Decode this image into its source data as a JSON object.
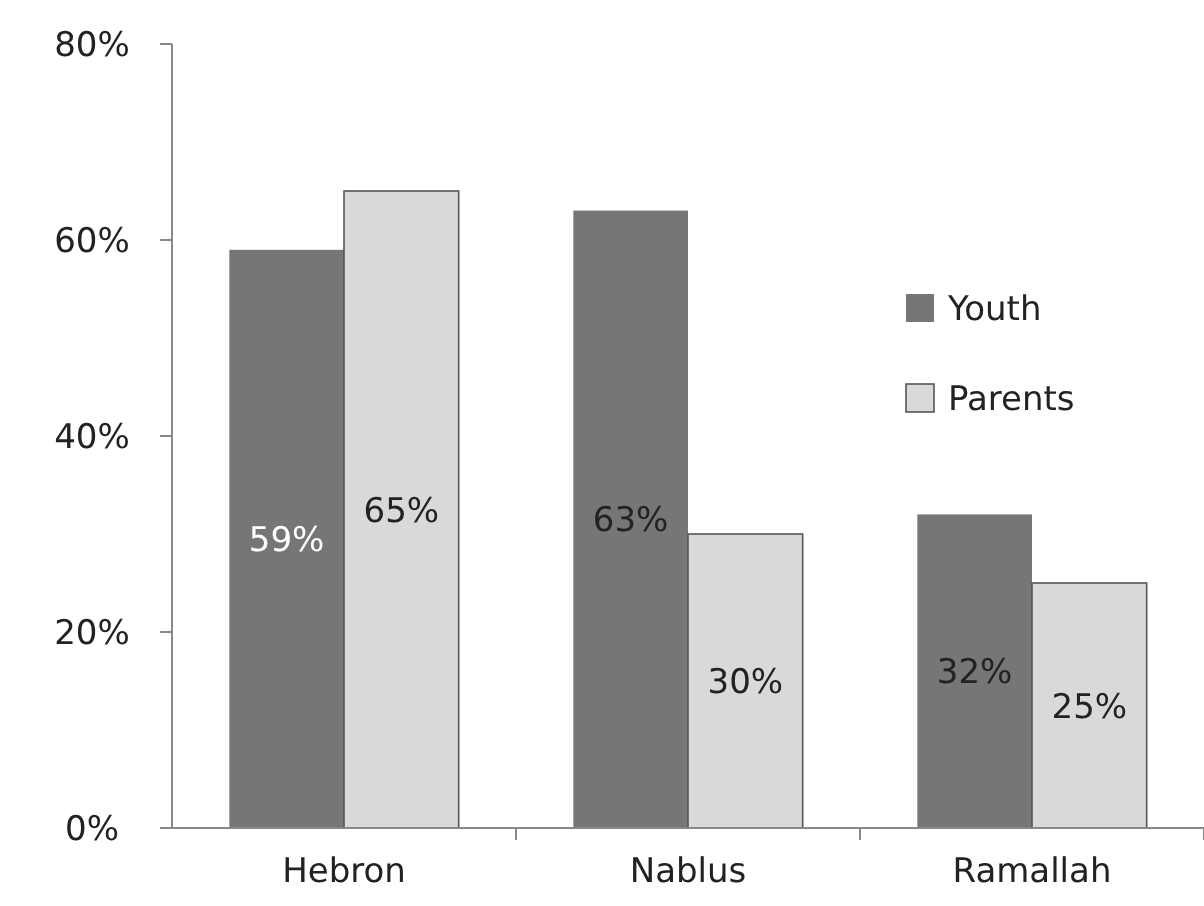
{
  "chart_data": {
    "type": "bar",
    "categories": [
      "Hebron",
      "Nablus",
      "Ramallah"
    ],
    "series": [
      {
        "name": "Youth",
        "color": "#767676",
        "values": [
          59,
          63,
          32
        ],
        "value_labels": [
          "59%",
          "63%",
          "32%"
        ]
      },
      {
        "name": "Parents",
        "color": "#d9d9d9",
        "values": [
          65,
          30,
          25
        ],
        "value_labels": [
          "65%",
          "30%",
          "25%"
        ]
      }
    ],
    "ylim": [
      0,
      80
    ],
    "yticks": [
      {
        "value": 0,
        "label": "0%"
      },
      {
        "value": 20,
        "label": "20%"
      },
      {
        "value": 40,
        "label": "40%"
      },
      {
        "value": 60,
        "label": "60%"
      },
      {
        "value": 80,
        "label": "80%"
      }
    ],
    "legend": "right",
    "grid": false
  }
}
